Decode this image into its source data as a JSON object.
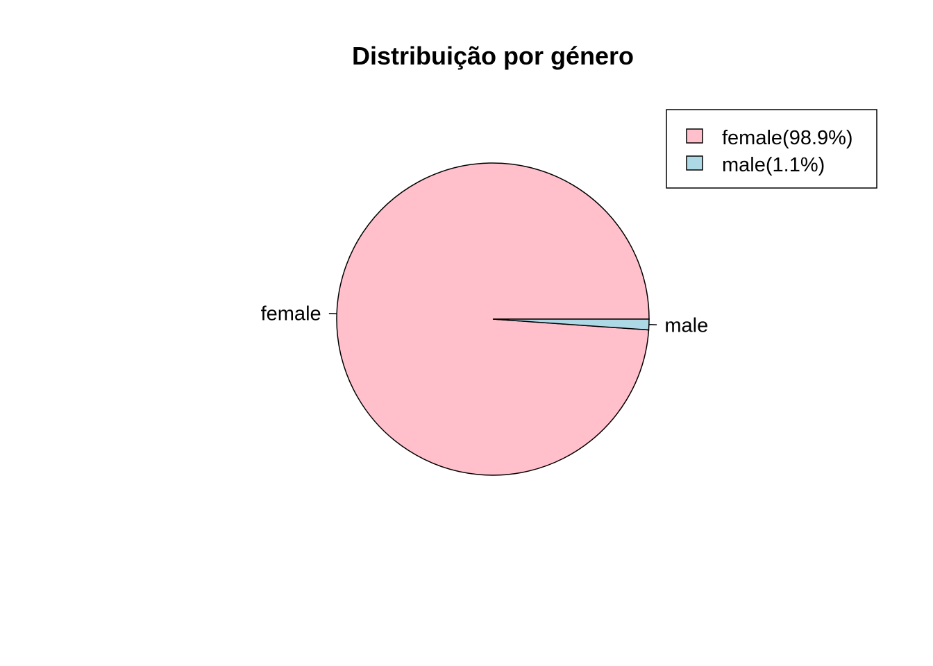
{
  "chart_data": {
    "type": "pie",
    "title": "Distribuição por género",
    "slices": [
      {
        "label": "female",
        "value": 98.9,
        "color": "#FFC0CB"
      },
      {
        "label": "male",
        "value": 1.1,
        "color": "#ADD8E6"
      }
    ],
    "legend": {
      "position": "top-right",
      "entries": [
        "female(98.9%)",
        "male(1.1%)"
      ]
    },
    "start_angle_deg": 0,
    "direction": "counterclockwise"
  }
}
